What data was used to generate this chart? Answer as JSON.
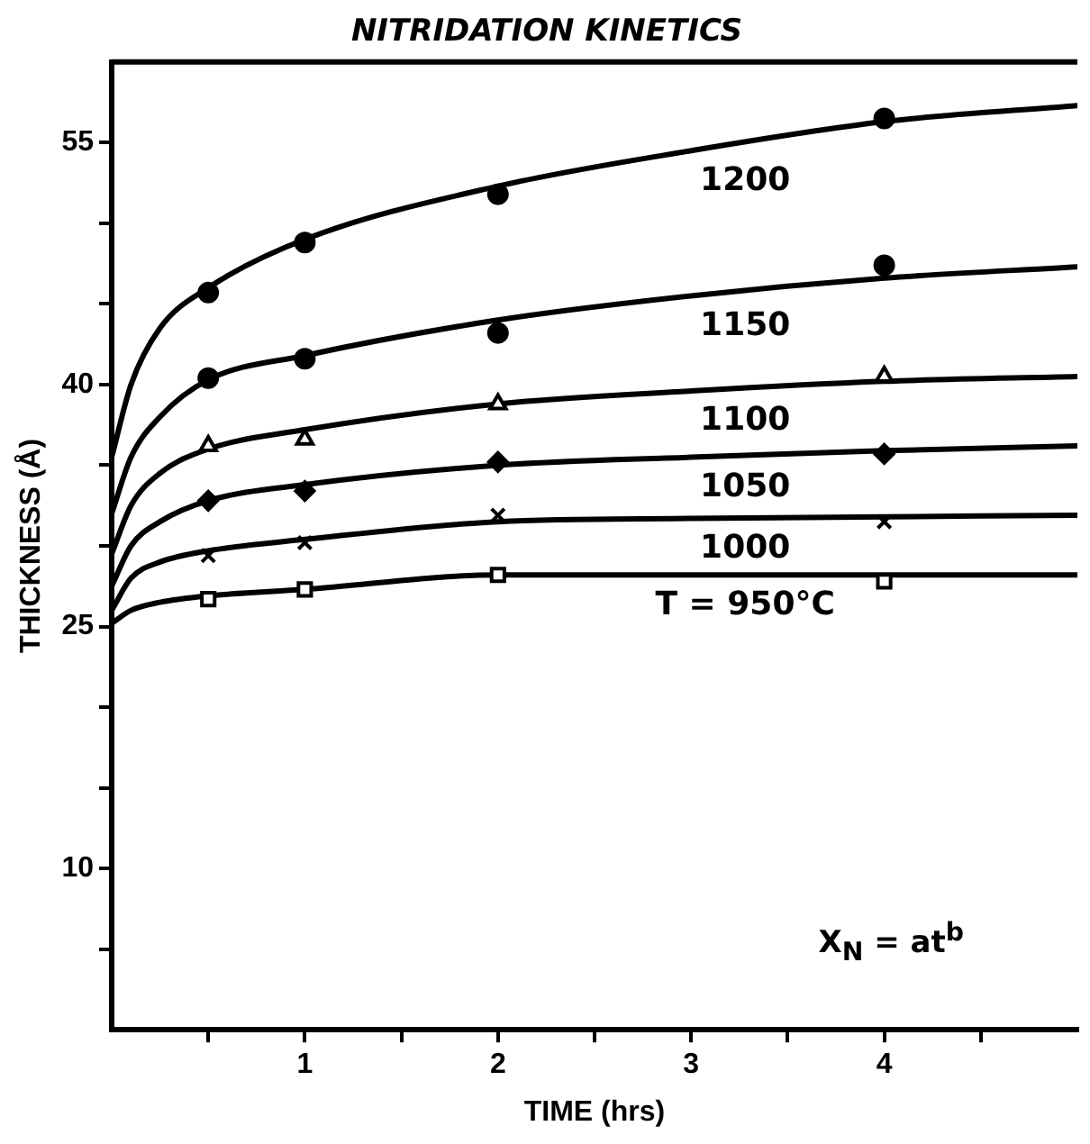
{
  "chart_data": {
    "type": "scatter",
    "title": "NITRIDATION KINETICS",
    "xlabel": "TIME (hrs)",
    "ylabel": "THICKNESS (Å)",
    "xlim": [
      0,
      5
    ],
    "ylim": [
      0,
      60
    ],
    "xticks": [
      {
        "value": 0.5,
        "label": null
      },
      1,
      {
        "value": 1.5,
        "label": null
      },
      2,
      {
        "value": 2.5,
        "label": null
      },
      3,
      {
        "value": 3.5,
        "label": null
      },
      4,
      {
        "value": 4.5,
        "label": null
      }
    ],
    "yticks": [
      {
        "value": 5,
        "label": null
      },
      10,
      {
        "value": 15,
        "label": null
      },
      {
        "value": 20,
        "label": null
      },
      25,
      {
        "value": 30,
        "label": null
      },
      {
        "value": 35,
        "label": null
      },
      40,
      {
        "value": 45,
        "label": null
      },
      {
        "value": 50,
        "label": null
      },
      55
    ],
    "grid": false,
    "legend": false,
    "annotations": [
      "X$_{N}$ = at$^{b}$"
    ],
    "series": [
      {
        "type": "scatter",
        "marker": "circle",
        "color": "#000000",
        "x": [
          0.5,
          1,
          2,
          4
        ],
        "values": [
          45.7,
          48.8,
          51.8,
          56.5
        ]
      },
      {
        "type": "scatter",
        "marker": "circle",
        "color": "#000000",
        "x": [
          0.5,
          1,
          2,
          4
        ],
        "values": [
          40.4,
          41.6,
          43.2,
          47.4
        ]
      },
      {
        "type": "scatter",
        "marker": "triangle",
        "color": "#000000",
        "x": [
          0.5,
          1,
          2,
          4
        ],
        "values": [
          36.2,
          36.6,
          38.8,
          40.5
        ]
      },
      {
        "type": "scatter",
        "marker": "diamond",
        "color": "#000000",
        "x": [
          0.5,
          1,
          2,
          4
        ],
        "values": [
          32.8,
          33.4,
          35.2,
          35.7
        ]
      },
      {
        "type": "scatter",
        "marker": "cross",
        "color": "#000000",
        "x": [
          0.5,
          1,
          2,
          4
        ],
        "values": [
          29.4,
          30.2,
          31.9,
          31.5
        ]
      },
      {
        "type": "scatter",
        "marker": "square",
        "color": "#000000",
        "x": [
          0.5,
          1,
          2,
          4
        ],
        "values": [
          26.7,
          27.3,
          28.2,
          27.8
        ]
      },
      {
        "type": "line",
        "name": "1200",
        "marker": "none",
        "color": "#000000",
        "x": [
          0,
          0.1,
          0.25,
          0.5,
          1,
          2,
          3,
          4,
          5
        ],
        "values": [
          35.5,
          40,
          43.5,
          46,
          49,
          52.3,
          54.5,
          56.3,
          57.3
        ]
      },
      {
        "type": "line",
        "name": "1150",
        "marker": "none",
        "color": "#000000",
        "x": [
          0,
          0.1,
          0.25,
          0.5,
          1,
          2,
          3,
          4,
          5
        ],
        "values": [
          32,
          35.5,
          38,
          40.3,
          41.8,
          44,
          45.5,
          46.6,
          47.3
        ]
      },
      {
        "type": "line",
        "name": "1100",
        "marker": "none",
        "color": "#000000",
        "x": [
          0,
          0.1,
          0.25,
          0.5,
          1,
          2,
          3,
          4,
          5
        ],
        "values": [
          29.5,
          32.5,
          34.5,
          36,
          37.2,
          38.8,
          39.6,
          40.2,
          40.5
        ]
      },
      {
        "type": "line",
        "name": "1050",
        "marker": "none",
        "color": "#000000",
        "x": [
          0,
          0.1,
          0.25,
          0.5,
          1,
          2,
          3,
          4,
          5
        ],
        "values": [
          27.5,
          30,
          31.5,
          32.8,
          33.8,
          35,
          35.5,
          35.9,
          36.2
        ]
      },
      {
        "type": "line",
        "name": "1000",
        "marker": "none",
        "color": "#000000",
        "x": [
          0,
          0.1,
          0.25,
          0.5,
          1,
          2,
          3,
          4,
          5
        ],
        "values": [
          26,
          28,
          29,
          29.7,
          30.4,
          31.5,
          31.7,
          31.8,
          31.9
        ]
      },
      {
        "type": "line",
        "name": "T = 950°C",
        "marker": "none",
        "color": "#000000",
        "x": [
          0,
          0.1,
          0.25,
          0.5,
          1,
          2,
          3,
          4,
          5
        ],
        "values": [
          25.2,
          26,
          26.5,
          26.9,
          27.3,
          28.2,
          28.2,
          28.2,
          28.2
        ]
      }
    ]
  }
}
